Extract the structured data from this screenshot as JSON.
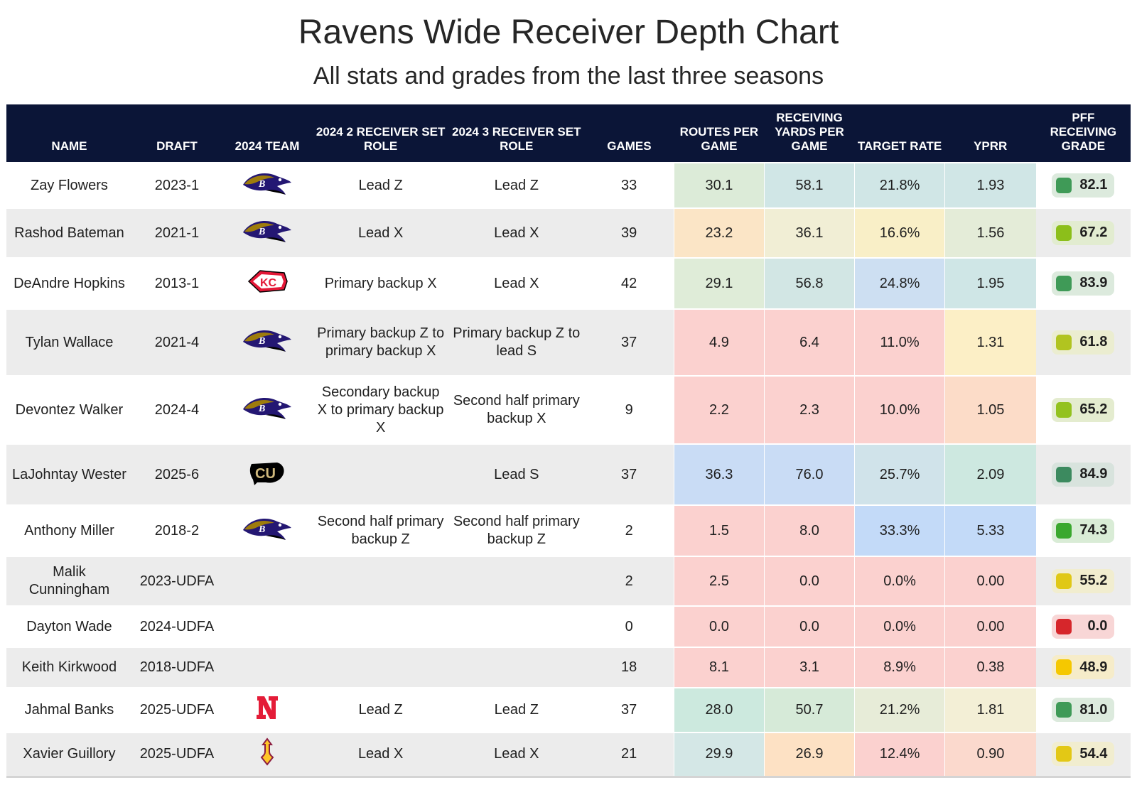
{
  "title": "Ravens Wide Receiver Depth Chart",
  "subtitle": "All stats and grades from the last three seasons",
  "columns": {
    "name": "NAME",
    "draft": "DRAFT",
    "team": "2024 TEAM",
    "role2": "2024 2 RECEIVER SET ROLE",
    "role3": "2024 3 RECEIVER SET ROLE",
    "games": "GAMES",
    "routes": "ROUTES PER GAME",
    "yards": "RECEIVING YARDS PER GAME",
    "target": "TARGET RATE",
    "yprr": "YPRR",
    "grade": "PFF RECEIVING GRADE"
  },
  "chart_data": {
    "type": "table",
    "rows": [
      {
        "name": "Zay Flowers",
        "draft": "2023-1",
        "team_logo": "ravens-logo",
        "role2": "Lead Z",
        "role3": "Lead Z",
        "games": "33",
        "routes": "30.1",
        "routes_bg": "#dcebd8",
        "yards": "58.1",
        "yards_bg": "#d0e6e6",
        "target": "21.8%",
        "target_bg": "#d0e6e6",
        "yprr": "1.93",
        "yprr_bg": "#d0e6e6",
        "grade": "82.1",
        "grade_dot": "#3f9a57",
        "grade_bg": "#dceadd"
      },
      {
        "name": "Rashod Bateman",
        "draft": "2021-1",
        "team_logo": "ravens-logo",
        "role2": "Lead X",
        "role3": "Lead X",
        "games": "39",
        "routes": "23.2",
        "routes_bg": "#fbe5c6",
        "yards": "36.1",
        "yards_bg": "#f1eed5",
        "target": "16.6%",
        "target_bg": "#f9efc7",
        "yprr": "1.56",
        "yprr_bg": "#e4ecd8",
        "grade": "67.2",
        "grade_dot": "#8cbf1a",
        "grade_bg": "#e2ecd0"
      },
      {
        "name": "DeAndre Hopkins",
        "draft": "2013-1",
        "team_logo": "chiefs-logo",
        "role2": "Primary backup X",
        "role3": "Lead X",
        "games": "42",
        "routes": "29.1",
        "routes_bg": "#dfecd8",
        "yards": "56.8",
        "yards_bg": "#d2e6e4",
        "target": "24.8%",
        "target_bg": "#cddff2",
        "yprr": "1.95",
        "yprr_bg": "#cfe6e6",
        "grade": "83.9",
        "grade_dot": "#3f9a57",
        "grade_bg": "#dceadd"
      },
      {
        "name": "Tylan Wallace",
        "draft": "2021-4",
        "team_logo": "ravens-logo",
        "role2": "Primary backup Z to primary backup X",
        "role3": "Primary backup Z to lead S",
        "games": "37",
        "routes": "4.9",
        "routes_bg": "#fbd1cf",
        "yards": "6.4",
        "yards_bg": "#fbd1cf",
        "target": "11.0%",
        "target_bg": "#fbd1cf",
        "yprr": "1.31",
        "yprr_bg": "#fcefc6",
        "grade": "61.8",
        "grade_dot": "#b1c420",
        "grade_bg": "#ebedd0"
      },
      {
        "name": "Devontez Walker",
        "draft": "2024-4",
        "team_logo": "ravens-logo",
        "role2": "Secondary backup X to primary backup X",
        "role3": "Second half primary backup X",
        "games": "9",
        "routes": "2.2",
        "routes_bg": "#fbd1cf",
        "yards": "2.3",
        "yards_bg": "#fbd1cf",
        "target": "10.0%",
        "target_bg": "#fbd1cf",
        "yprr": "1.05",
        "yprr_bg": "#fcdcc8",
        "grade": "65.2",
        "grade_dot": "#93c21e",
        "grade_bg": "#e4eccf"
      },
      {
        "name": "LaJohntay Wester",
        "draft": "2025-6",
        "team_logo": "colorado-logo",
        "role2": "",
        "role3": "Lead S",
        "games": "37",
        "routes": "36.3",
        "routes_bg": "#c9dcf5",
        "yards": "76.0",
        "yards_bg": "#c9dcf5",
        "target": "25.7%",
        "target_bg": "#d0e3ea",
        "yprr": "2.09",
        "yprr_bg": "#cde8e0",
        "grade": "84.9",
        "grade_dot": "#3c8a5f",
        "grade_bg": "#d8e3dd"
      },
      {
        "name": "Anthony Miller",
        "draft": "2018-2",
        "team_logo": "ravens-logo",
        "role2": "Second half primary backup Z",
        "role3": "Second half primary backup Z",
        "games": "2",
        "routes": "1.5",
        "routes_bg": "#fbd1cf",
        "yards": "8.0",
        "yards_bg": "#fbd1cf",
        "target": "33.3%",
        "target_bg": "#c3daf8",
        "yprr": "5.33",
        "yprr_bg": "#c3daf8",
        "grade": "74.3",
        "grade_dot": "#3aa82e",
        "grade_bg": "#d9ecd6"
      },
      {
        "name": "Malik Cunningham",
        "draft": "2023-UDFA",
        "team_logo": "",
        "role2": "",
        "role3": "",
        "games": "2",
        "routes": "2.5",
        "routes_bg": "#fbd1cf",
        "yards": "0.0",
        "yards_bg": "#fbd1cf",
        "target": "0.0%",
        "target_bg": "#fbd1cf",
        "yprr": "0.00",
        "yprr_bg": "#fbd1cf",
        "grade": "55.2",
        "grade_dot": "#e0c815",
        "grade_bg": "#f1edcf"
      },
      {
        "name": "Dayton Wade",
        "draft": "2024-UDFA",
        "team_logo": "",
        "role2": "",
        "role3": "",
        "games": "0",
        "routes": "0.0",
        "routes_bg": "#fbd1cf",
        "yards": "0.0",
        "yards_bg": "#fbd1cf",
        "target": "0.0%",
        "target_bg": "#fbd1cf",
        "yprr": "0.00",
        "yprr_bg": "#fbd1cf",
        "grade": "0.0",
        "grade_dot": "#d6262b",
        "grade_bg": "#f8d6d6"
      },
      {
        "name": "Keith Kirkwood",
        "draft": "2018-UDFA",
        "team_logo": "",
        "role2": "",
        "role3": "",
        "games": "18",
        "routes": "8.1",
        "routes_bg": "#fbd1cf",
        "yards": "3.1",
        "yards_bg": "#fbd1cf",
        "target": "8.9%",
        "target_bg": "#fbd1cf",
        "yprr": "0.38",
        "yprr_bg": "#fbd1cf",
        "grade": "48.9",
        "grade_dot": "#f5c800",
        "grade_bg": "#f6ecc9"
      },
      {
        "name": "Jahmal Banks",
        "draft": "2025-UDFA",
        "team_logo": "nebraska-logo",
        "role2": "Lead Z",
        "role3": "Lead Z",
        "games": "37",
        "routes": "28.0",
        "routes_bg": "#cce9de",
        "yards": "50.7",
        "yards_bg": "#d6ead8",
        "target": "21.2%",
        "target_bg": "#e7ecd8",
        "yprr": "1.81",
        "yprr_bg": "#f3efd6",
        "grade": "81.0",
        "grade_dot": "#3f9a57",
        "grade_bg": "#dceadd"
      },
      {
        "name": "Xavier Guillory",
        "draft": "2025-UDFA",
        "team_logo": "asu-logo",
        "role2": "Lead X",
        "role3": "Lead X",
        "games": "21",
        "routes": "29.9",
        "routes_bg": "#d4e7e6",
        "yards": "26.9",
        "yards_bg": "#fde1c4",
        "target": "12.4%",
        "target_bg": "#fbd1cf",
        "yprr": "0.90",
        "yprr_bg": "#fbd9cd",
        "grade": "54.4",
        "grade_dot": "#e3c815",
        "grade_bg": "#f1edcf"
      }
    ]
  }
}
